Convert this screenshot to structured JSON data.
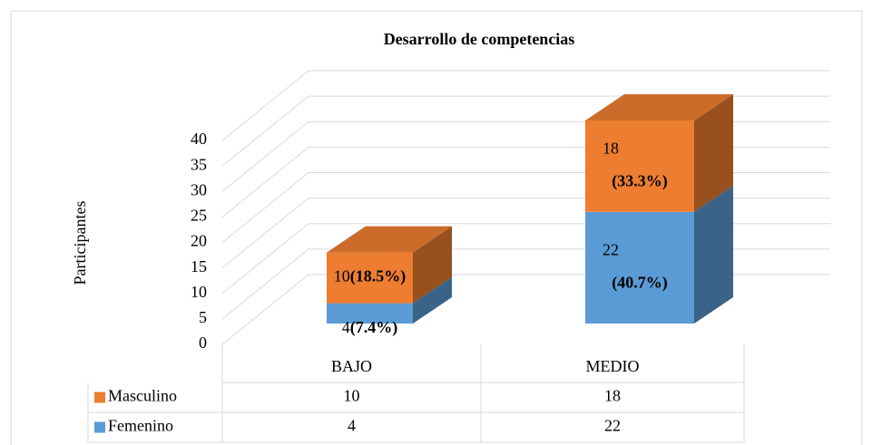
{
  "chart_data": {
    "type": "bar3d_stacked",
    "title": "Desarrollo de competencias",
    "y_label": "Participantes",
    "categories": [
      "BAJO",
      "MEDIO"
    ],
    "series": [
      {
        "name": "Femenino",
        "color": "#5b9bd5",
        "values": [
          4,
          22
        ],
        "percents": [
          7.4,
          40.7
        ],
        "percent_labels": [
          "(7.4%)",
          "(40.7%)"
        ]
      },
      {
        "name": "Masculino",
        "color": "#ed7d31",
        "values": [
          10,
          18
        ],
        "percents": [
          18.5,
          33.3
        ],
        "percent_labels": [
          "(18.5%)",
          "(33.3%)"
        ]
      }
    ],
    "ylim": [
      0,
      40
    ],
    "yticks": [
      0,
      5,
      10,
      15,
      20,
      25,
      30,
      35,
      40
    ],
    "grid": true,
    "data_table": true
  }
}
